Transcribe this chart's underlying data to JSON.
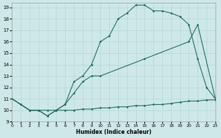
{
  "xlabel": "Humidex (Indice chaleur)",
  "bg_color": "#cee8e8",
  "line_color": "#1a6b5a",
  "grid_color": "#b8d8d8",
  "xlim": [
    0,
    23
  ],
  "ylim": [
    9,
    19.4
  ],
  "yticks": [
    9,
    10,
    11,
    12,
    13,
    14,
    15,
    16,
    17,
    18,
    19
  ],
  "xticks": [
    0,
    1,
    2,
    3,
    4,
    5,
    6,
    7,
    8,
    9,
    10,
    11,
    12,
    13,
    14,
    15,
    16,
    17,
    18,
    19,
    20,
    21,
    22,
    23
  ],
  "line1_x": [
    0,
    1,
    2,
    3,
    4,
    5,
    6,
    7,
    8,
    9,
    10,
    11,
    12,
    13,
    14,
    15,
    16,
    17,
    18,
    19,
    20,
    21,
    22,
    23
  ],
  "line1_y": [
    11.0,
    10.5,
    10.0,
    10.0,
    10.0,
    10.0,
    10.0,
    10.0,
    10.1,
    10.1,
    10.2,
    10.2,
    10.3,
    10.3,
    10.4,
    10.4,
    10.5,
    10.5,
    10.6,
    10.7,
    10.8,
    10.8,
    10.9,
    10.9
  ],
  "line2_x": [
    0,
    1,
    2,
    3,
    4,
    5,
    6,
    7,
    8,
    9,
    10,
    11,
    12,
    13,
    14,
    15,
    16,
    17,
    18,
    19,
    20,
    21,
    22,
    23
  ],
  "line2_y": [
    11.0,
    10.5,
    10.0,
    10.0,
    9.5,
    10.0,
    10.5,
    12.5,
    13.0,
    14.0,
    16.0,
    16.5,
    18.0,
    18.5,
    19.2,
    19.2,
    18.7,
    18.7,
    18.5,
    18.2,
    17.5,
    14.5,
    12.0,
    11.0
  ],
  "line3_x": [
    0,
    2,
    3,
    4,
    5,
    6,
    7,
    8,
    9,
    10,
    15,
    20,
    21,
    23
  ],
  "line3_y": [
    11.0,
    10.0,
    10.0,
    9.5,
    10.0,
    10.5,
    11.5,
    12.5,
    13.0,
    13.0,
    14.5,
    16.0,
    17.5,
    11.0
  ]
}
